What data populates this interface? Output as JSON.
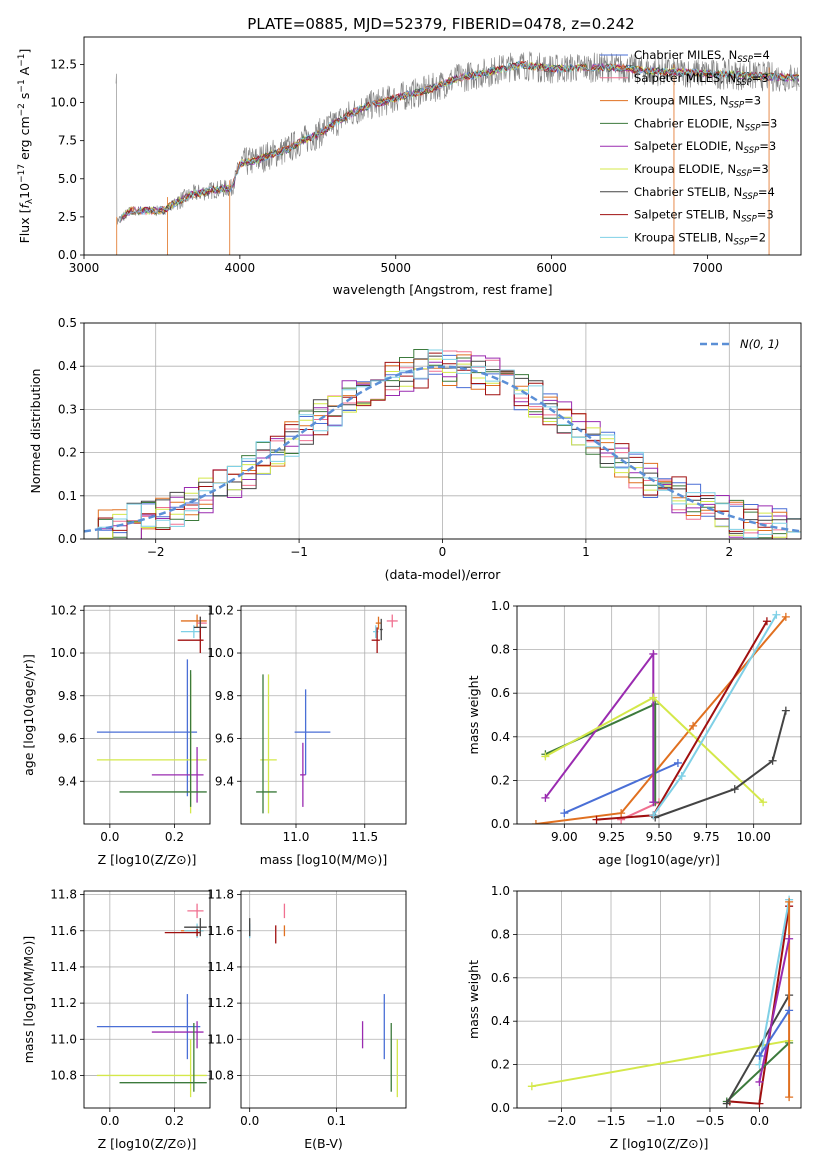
{
  "figure_title": "PLATE=0885, MJD=52379, FIBERID=0478, z=0.242",
  "colors": {
    "Chabrier MILES": "#4a6fd6",
    "Salpeter MILES": "#f07090",
    "Kroupa MILES": "#e07020",
    "Chabrier ELODIE": "#3c7a3c",
    "Salpeter ELODIE": "#9a2bb0",
    "Kroupa ELODIE": "#d4e84a",
    "Chabrier STELIB": "#444444",
    "Salpeter STELIB": "#a01010",
    "Kroupa STELIB": "#7fd0e6",
    "data": "#808080",
    "normal": "#5b8fd6"
  },
  "chart_data": [
    {
      "type": "line",
      "id": "spectrum",
      "xlabel": "wavelength [Angstrom, rest frame]",
      "ylabel": "Flux [f_λ 10^-17 erg cm^-2 s^-1 A^-1]",
      "xlim": [
        3000,
        7600
      ],
      "ylim": [
        0,
        14.3
      ],
      "xticks": [
        3000,
        4000,
        5000,
        6000,
        7000
      ],
      "yticks": [
        0.0,
        2.5,
        5.0,
        7.5,
        10.0,
        12.5
      ],
      "legend_position": "upper right",
      "legend": [
        {
          "name": "Chabrier MILES",
          "nssp": "4"
        },
        {
          "name": "Salpeter MILES",
          "nssp": "3"
        },
        {
          "name": "Kroupa MILES",
          "nssp": "3"
        },
        {
          "name": "Chabrier ELODIE",
          "nssp": "3"
        },
        {
          "name": "Salpeter ELODIE",
          "nssp": "3"
        },
        {
          "name": "Kroupa ELODIE",
          "nssp": "3"
        },
        {
          "name": "Chabrier STELIB",
          "nssp": "4"
        },
        {
          "name": "Salpeter STELIB",
          "nssp": "3"
        },
        {
          "name": "Kroupa STELIB",
          "nssp": "2"
        }
      ],
      "continuum": [
        [
          3210,
          2.2
        ],
        [
          3300,
          2.9
        ],
        [
          3500,
          2.9
        ],
        [
          3600,
          3.5
        ],
        [
          3700,
          4.0
        ],
        [
          3850,
          4.3
        ],
        [
          3950,
          4.4
        ],
        [
          4000,
          6.0
        ],
        [
          4100,
          6.2
        ],
        [
          4200,
          6.6
        ],
        [
          4300,
          6.9
        ],
        [
          4400,
          7.5
        ],
        [
          4500,
          7.9
        ],
        [
          4600,
          8.6
        ],
        [
          4700,
          9.2
        ],
        [
          4800,
          9.7
        ],
        [
          5000,
          10.3
        ],
        [
          5200,
          10.8
        ],
        [
          5400,
          11.6
        ],
        [
          5600,
          12.0
        ],
        [
          5800,
          12.5
        ],
        [
          6000,
          12.2
        ],
        [
          6200,
          12.3
        ],
        [
          6400,
          12.3
        ],
        [
          6600,
          12.1
        ],
        [
          6800,
          12.0
        ],
        [
          7000,
          11.9
        ],
        [
          7200,
          11.8
        ],
        [
          7600,
          11.6
        ]
      ]
    },
    {
      "type": "histogram",
      "id": "residuals",
      "xlabel": "(data-model)/error",
      "ylabel": "Normed distribution",
      "xlim": [
        -2.5,
        2.5
      ],
      "ylim": [
        0,
        0.5
      ],
      "xticks": [
        -2,
        -1,
        0,
        1,
        2
      ],
      "yticks": [
        0.0,
        0.1,
        0.2,
        0.3,
        0.4,
        0.5
      ],
      "legend": [
        "N(0, 1)"
      ],
      "legend_position": "upper right",
      "grid": true
    },
    {
      "type": "scatter",
      "id": "age_vs_Z",
      "xlabel": "Z [log10(Z/Z⊙)]",
      "ylabel": "age [log10(age/yr)]",
      "xlim": [
        -0.08,
        0.31
      ],
      "ylim": [
        9.2,
        10.22
      ],
      "xticks": [
        0.0,
        0.2
      ],
      "yticks": [
        9.4,
        9.6,
        9.8,
        10.0,
        10.2
      ],
      "points": [
        {
          "model": "Chabrier MILES",
          "x": 0.24,
          "xerr": [
            0.28,
            0.03
          ],
          "y": 9.63,
          "yerr": [
            0.3,
            0.34
          ]
        },
        {
          "model": "Kroupa ELODIE",
          "x": 0.25,
          "xerr": [
            0.29,
            0.05
          ],
          "y": 9.5,
          "yerr": [
            0.25,
            0.4
          ]
        },
        {
          "model": "Salpeter ELODIE",
          "x": 0.27,
          "xerr": [
            0.14,
            0.02
          ],
          "y": 9.43,
          "yerr": [
            0.13,
            0.13
          ]
        },
        {
          "model": "Chabrier ELODIE",
          "x": 0.25,
          "xerr": [
            0.22,
            0.05
          ],
          "y": 9.35,
          "yerr": [
            0.07,
            0.57
          ]
        },
        {
          "model": "Kroupa MILES",
          "x": 0.27,
          "xerr": [
            0.05,
            0.03
          ],
          "y": 10.15,
          "yerr": [
            0.03,
            0.03
          ]
        },
        {
          "model": "Salpeter MILES",
          "x": 0.28,
          "xerr": [
            0.01,
            0.02
          ],
          "y": 10.14,
          "yerr": [
            0.02,
            0.03
          ]
        },
        {
          "model": "Kroupa STELIB",
          "x": 0.26,
          "xerr": [
            0.04,
            0.02
          ],
          "y": 10.1,
          "yerr": [
            0.03,
            0.03
          ]
        },
        {
          "model": "Chabrier STELIB",
          "x": 0.28,
          "xerr": [
            0.02,
            0.02
          ],
          "y": 10.12,
          "yerr": [
            0.05,
            0.05
          ]
        },
        {
          "model": "Salpeter STELIB",
          "x": 0.28,
          "xerr": [
            0.07,
            0.01
          ],
          "y": 10.06,
          "yerr": [
            0.06,
            0.06
          ]
        }
      ]
    },
    {
      "type": "scatter",
      "id": "age_vs_mass",
      "xlabel": "mass [log10(M/M⊙)]",
      "ylabel": "",
      "xlim": [
        10.6,
        11.8
      ],
      "ylim": [
        9.2,
        10.22
      ],
      "xticks": [
        11.0,
        11.5
      ],
      "yticks": [
        9.4,
        9.6,
        9.8,
        10.0,
        10.2
      ],
      "points": [
        {
          "model": "Chabrier MILES",
          "x": 11.07,
          "xerr": [
            0.08,
            0.18
          ],
          "y": 9.63,
          "yerr": [
            0.2,
            0.2
          ]
        },
        {
          "model": "Salpeter ELODIE",
          "x": 11.05,
          "xerr": [
            0.02,
            0.02
          ],
          "y": 9.43,
          "yerr": [
            0.15,
            0.15
          ]
        },
        {
          "model": "Kroupa ELODIE",
          "x": 10.8,
          "xerr": [
            0.06,
            0.06
          ],
          "y": 9.5,
          "yerr": [
            0.25,
            0.4
          ]
        },
        {
          "model": "Chabrier ELODIE",
          "x": 10.76,
          "xerr": [
            0.05,
            0.1
          ],
          "y": 9.35,
          "yerr": [
            0.1,
            0.55
          ]
        },
        {
          "model": "Salpeter MILES",
          "x": 11.7,
          "xerr": [
            0.04,
            0.04
          ],
          "y": 10.15,
          "yerr": [
            0.03,
            0.03
          ]
        },
        {
          "model": "Kroupa MILES",
          "x": 11.6,
          "xerr": [
            0.02,
            0.02
          ],
          "y": 10.14,
          "yerr": [
            0.03,
            0.03
          ]
        },
        {
          "model": "Kroupa STELIB",
          "x": 11.58,
          "xerr": [
            0.02,
            0.02
          ],
          "y": 10.1,
          "yerr": [
            0.03,
            0.03
          ]
        },
        {
          "model": "Chabrier STELIB",
          "x": 11.62,
          "xerr": [
            0.01,
            0.01
          ],
          "y": 10.11,
          "yerr": [
            0.05,
            0.05
          ]
        },
        {
          "model": "Salpeter STELIB",
          "x": 11.59,
          "xerr": [
            0.04,
            0.02
          ],
          "y": 10.06,
          "yerr": [
            0.06,
            0.06
          ]
        }
      ]
    },
    {
      "type": "line",
      "id": "massweight_vs_age",
      "xlabel": "age [log10(age/yr)]",
      "ylabel": "mass weight",
      "xlim": [
        8.75,
        10.25
      ],
      "ylim": [
        0.0,
        1.0
      ],
      "xticks": [
        9.0,
        9.25,
        9.5,
        9.75,
        10.0
      ],
      "yticks": [
        0.0,
        0.2,
        0.4,
        0.6,
        0.8,
        1.0
      ],
      "series": [
        {
          "model": "Chabrier MILES",
          "x": [
            9.0,
            9.6
          ],
          "y": [
            0.05,
            0.28
          ]
        },
        {
          "model": "Salpeter MILES",
          "x": [
            9.3,
            9.5
          ],
          "y": [
            0.02,
            0.1
          ]
        },
        {
          "model": "Kroupa MILES",
          "x": [
            8.85,
            9.3,
            9.68,
            10.17
          ],
          "y": [
            0.0,
            0.05,
            0.45,
            0.95
          ]
        },
        {
          "model": "Chabrier ELODIE",
          "x": [
            8.9,
            9.48,
            9.48
          ],
          "y": [
            0.32,
            0.55,
            0.1
          ]
        },
        {
          "model": "Salpeter ELODIE",
          "x": [
            8.9,
            9.47,
            9.47
          ],
          "y": [
            0.12,
            0.78,
            0.1
          ]
        },
        {
          "model": "Kroupa ELODIE",
          "x": [
            8.9,
            9.47,
            10.05
          ],
          "y": [
            0.31,
            0.58,
            0.1
          ]
        },
        {
          "model": "Chabrier STELIB",
          "x": [
            9.48,
            9.9,
            10.1,
            10.17
          ],
          "y": [
            0.03,
            0.16,
            0.29,
            0.52
          ]
        },
        {
          "model": "Salpeter STELIB",
          "x": [
            9.17,
            9.47,
            10.07
          ],
          "y": [
            0.02,
            0.04,
            0.93
          ]
        },
        {
          "model": "Kroupa STELIB",
          "x": [
            9.47,
            9.62,
            10.12
          ],
          "y": [
            0.04,
            0.22,
            0.96
          ]
        }
      ]
    },
    {
      "type": "scatter",
      "id": "mass_vs_Z",
      "xlabel": "Z [log10(Z/Z⊙)]",
      "ylabel": "mass [log10(M/M⊙)]",
      "xlim": [
        -0.08,
        0.31
      ],
      "ylim": [
        10.62,
        11.82
      ],
      "xticks": [
        0.0,
        0.2
      ],
      "yticks": [
        10.8,
        11.0,
        11.2,
        11.4,
        11.6,
        11.8
      ],
      "points": [
        {
          "model": "Chabrier MILES",
          "x": 0.24,
          "xerr": [
            0.28,
            0.04
          ],
          "y": 11.07,
          "yerr": [
            0.18,
            0.18
          ]
        },
        {
          "model": "Salpeter ELODIE",
          "x": 0.27,
          "xerr": [
            0.14,
            0.02
          ],
          "y": 11.04,
          "yerr": [
            0.09,
            0.06
          ]
        },
        {
          "model": "Kroupa ELODIE",
          "x": 0.25,
          "xerr": [
            0.29,
            0.05
          ],
          "y": 10.8,
          "yerr": [
            0.12,
            0.2
          ]
        },
        {
          "model": "Chabrier ELODIE",
          "x": 0.26,
          "xerr": [
            0.23,
            0.04
          ],
          "y": 10.76,
          "yerr": [
            0.05,
            0.33
          ]
        },
        {
          "model": "Salpeter MILES",
          "x": 0.27,
          "xerr": [
            0.03,
            0.02
          ],
          "y": 11.71,
          "yerr": [
            0.04,
            0.04
          ]
        },
        {
          "model": "Kroupa MILES",
          "x": 0.27,
          "xerr": [
            0.05,
            0.02
          ],
          "y": 11.6,
          "yerr": [
            0.03,
            0.03
          ]
        },
        {
          "model": "Kroupa STELIB",
          "x": 0.27,
          "xerr": [
            0.04,
            0.02
          ],
          "y": 11.6,
          "yerr": [
            0.04,
            0.04
          ]
        },
        {
          "model": "Chabrier STELIB",
          "x": 0.28,
          "xerr": [
            0.05,
            0.02
          ],
          "y": 11.62,
          "yerr": [
            0.05,
            0.05
          ]
        },
        {
          "model": "Salpeter STELIB",
          "x": 0.27,
          "xerr": [
            0.1,
            0.01
          ],
          "y": 11.59,
          "yerr": [
            0.02,
            0.02
          ]
        }
      ]
    },
    {
      "type": "scatter",
      "id": "mass_vs_ebv",
      "xlabel": "E(B-V)",
      "ylabel": "",
      "xlim": [
        -0.01,
        0.18
      ],
      "ylim": [
        10.62,
        11.82
      ],
      "xticks": [
        0.0,
        0.1
      ],
      "yticks": [
        10.8,
        11.0,
        11.2,
        11.4,
        11.6,
        11.8
      ],
      "points": [
        {
          "model": "Chabrier MILES",
          "x": 0.155,
          "y": 11.07,
          "yerr": [
            0.18,
            0.18
          ]
        },
        {
          "model": "Salpeter ELODIE",
          "x": 0.13,
          "y": 11.04,
          "yerr": [
            0.09,
            0.06
          ]
        },
        {
          "model": "Kroupa ELODIE",
          "x": 0.17,
          "y": 10.8,
          "yerr": [
            0.12,
            0.2
          ]
        },
        {
          "model": "Chabrier ELODIE",
          "x": 0.163,
          "y": 10.76,
          "yerr": [
            0.05,
            0.33
          ]
        },
        {
          "model": "Salpeter MILES",
          "x": 0.04,
          "y": 11.71,
          "yerr": [
            0.04,
            0.04
          ]
        },
        {
          "model": "Kroupa MILES",
          "x": 0.04,
          "y": 11.6,
          "yerr": [
            0.03,
            0.03
          ]
        },
        {
          "model": "Kroupa STELIB",
          "x": 0.0,
          "y": 11.6,
          "yerr": [
            0.04,
            0.04
          ]
        },
        {
          "model": "Chabrier STELIB",
          "x": 0.0,
          "y": 11.62,
          "yerr": [
            0.05,
            0.05
          ]
        },
        {
          "model": "Salpeter STELIB",
          "x": 0.03,
          "y": 11.59,
          "yerr": [
            0.06,
            0.04
          ]
        }
      ]
    },
    {
      "type": "line",
      "id": "massweight_vs_Z",
      "xlabel": "Z [log10(Z/Z⊙)]",
      "ylabel": "mass weight",
      "xlim": [
        -2.45,
        0.42
      ],
      "ylim": [
        0.0,
        1.0
      ],
      "xticks": [
        -2.0,
        -1.5,
        -1.0,
        -0.5,
        0.0
      ],
      "yticks": [
        0.0,
        0.2,
        0.4,
        0.6,
        0.8,
        1.0
      ],
      "series": [
        {
          "model": "Kroupa ELODIE",
          "x": [
            -2.3,
            0.3
          ],
          "y": [
            0.1,
            0.31
          ]
        },
        {
          "model": "Salpeter STELIB",
          "x": [
            -0.3,
            0.0,
            0.3
          ],
          "y": [
            0.03,
            0.02,
            0.93
          ]
        },
        {
          "model": "Chabrier ELODIE",
          "x": [
            -0.33,
            0.3
          ],
          "y": [
            0.03,
            0.3
          ]
        },
        {
          "model": "Chabrier STELIB",
          "x": [
            -0.33,
            0.3
          ],
          "y": [
            0.02,
            0.52
          ]
        },
        {
          "model": "Kroupa STELIB",
          "x": [
            0.0,
            0.3
          ],
          "y": [
            0.2,
            0.96
          ]
        },
        {
          "model": "Kroupa MILES",
          "x": [
            0.3,
            0.3
          ],
          "y": [
            0.05,
            0.95
          ]
        },
        {
          "model": "Salpeter ELODIE",
          "x": [
            0.0,
            0.3
          ],
          "y": [
            0.12,
            0.78
          ]
        },
        {
          "model": "Chabrier MILES",
          "x": [
            0.0,
            0.3
          ],
          "y": [
            0.24,
            0.45
          ]
        }
      ]
    }
  ]
}
